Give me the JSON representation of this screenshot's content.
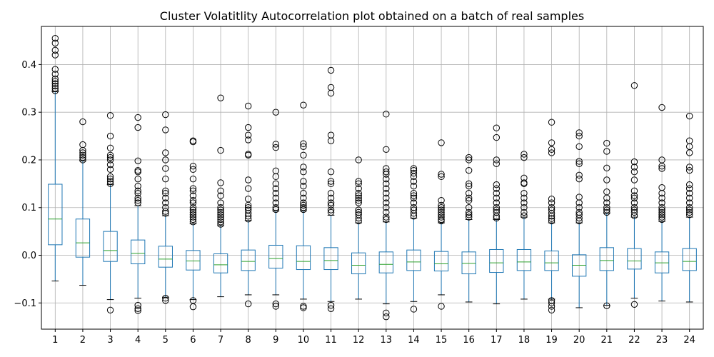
{
  "chart_data": {
    "type": "box",
    "title": "Cluster Volatitlity Autocorrelation plot obtained on a batch of real samples",
    "xlabel": "",
    "ylabel": "",
    "ylim": [
      -0.155,
      0.48
    ],
    "yticks": [
      -0.1,
      0.0,
      0.1,
      0.2,
      0.3,
      0.4
    ],
    "ytick_labels": [
      "−0.1",
      "0.0",
      "0.1",
      "0.2",
      "0.3",
      "0.4"
    ],
    "grid": true,
    "categories": [
      "1",
      "2",
      "3",
      "4",
      "5",
      "6",
      "7",
      "8",
      "9",
      "10",
      "11",
      "12",
      "13",
      "14",
      "15",
      "16",
      "17",
      "18",
      "19",
      "20",
      "21",
      "22",
      "23",
      "24"
    ],
    "boxes": [
      {
        "q1": 0.022,
        "median": 0.076,
        "q3": 0.149,
        "whisker_low": -0.054,
        "whisker_high": 0.343,
        "outliers": [
          0.345,
          0.35,
          0.355,
          0.36,
          0.365,
          0.37,
          0.38,
          0.39,
          0.42,
          0.43,
          0.445,
          0.455
        ]
      },
      {
        "q1": -0.004,
        "median": 0.026,
        "q3": 0.076,
        "whisker_low": -0.063,
        "whisker_high": 0.198,
        "outliers": [
          0.2,
          0.205,
          0.21,
          0.215,
          0.22,
          0.232,
          0.28
        ]
      },
      {
        "q1": -0.013,
        "median": 0.01,
        "q3": 0.05,
        "whisker_low": -0.093,
        "whisker_high": 0.148,
        "outliers": [
          -0.115,
          0.15,
          0.155,
          0.16,
          0.165,
          0.18,
          0.19,
          0.2,
          0.205,
          0.21,
          0.225,
          0.25,
          0.293
        ]
      },
      {
        "q1": -0.018,
        "median": 0.004,
        "q3": 0.032,
        "whisker_low": -0.09,
        "whisker_high": 0.104,
        "outliers": [
          -0.105,
          -0.112,
          -0.116,
          0.11,
          0.115,
          0.12,
          0.13,
          0.135,
          0.145,
          0.16,
          0.175,
          0.178,
          0.198,
          0.268,
          0.289
        ]
      },
      {
        "q1": -0.025,
        "median": -0.008,
        "q3": 0.019,
        "whisker_low": -0.088,
        "whisker_high": 0.083,
        "outliers": [
          -0.09,
          -0.095,
          0.088,
          0.092,
          0.1,
          0.11,
          0.12,
          0.13,
          0.135,
          0.16,
          0.182,
          0.2,
          0.215,
          0.263,
          0.295
        ]
      },
      {
        "q1": -0.031,
        "median": -0.012,
        "q3": 0.01,
        "whisker_low": -0.093,
        "whisker_high": 0.066,
        "outliers": [
          -0.095,
          -0.108,
          0.07,
          0.075,
          0.08,
          0.085,
          0.09,
          0.095,
          0.1,
          0.11,
          0.115,
          0.125,
          0.135,
          0.14,
          0.16,
          0.18,
          0.187,
          0.238,
          0.24
        ]
      },
      {
        "q1": -0.037,
        "median": -0.02,
        "q3": 0.003,
        "whisker_low": -0.087,
        "whisker_high": 0.062,
        "outliers": [
          0.065,
          0.07,
          0.075,
          0.08,
          0.085,
          0.09,
          0.095,
          0.1,
          0.11,
          0.125,
          0.135,
          0.152,
          0.22,
          0.33
        ]
      },
      {
        "q1": -0.032,
        "median": -0.013,
        "q3": 0.011,
        "whisker_low": -0.083,
        "whisker_high": 0.073,
        "outliers": [
          -0.102,
          0.076,
          0.082,
          0.088,
          0.095,
          0.1,
          0.105,
          0.118,
          0.14,
          0.158,
          0.21,
          0.212,
          0.242,
          0.252,
          0.268,
          0.313
        ]
      },
      {
        "q1": -0.027,
        "median": -0.007,
        "q3": 0.021,
        "whisker_low": -0.083,
        "whisker_high": 0.093,
        "outliers": [
          -0.102,
          -0.107,
          0.096,
          0.1,
          0.11,
          0.12,
          0.13,
          0.14,
          0.15,
          0.165,
          0.177,
          0.226,
          0.233,
          0.3
        ]
      },
      {
        "q1": -0.03,
        "median": -0.013,
        "q3": 0.02,
        "whisker_low": -0.092,
        "whisker_high": 0.093,
        "outliers": [
          -0.107,
          -0.11,
          0.096,
          0.1,
          0.105,
          0.11,
          0.12,
          0.13,
          0.145,
          0.155,
          0.175,
          0.185,
          0.21,
          0.228,
          0.234,
          0.315
        ]
      },
      {
        "q1": -0.03,
        "median": -0.011,
        "q3": 0.016,
        "whisker_low": -0.097,
        "whisker_high": 0.084,
        "outliers": [
          -0.105,
          -0.112,
          0.09,
          0.095,
          0.105,
          0.11,
          0.12,
          0.13,
          0.15,
          0.155,
          0.175,
          0.24,
          0.252,
          0.34,
          0.352,
          0.388
        ]
      },
      {
        "q1": -0.039,
        "median": -0.021,
        "q3": 0.005,
        "whisker_low": -0.092,
        "whisker_high": 0.068,
        "outliers": [
          0.072,
          0.078,
          0.085,
          0.09,
          0.095,
          0.11,
          0.115,
          0.12,
          0.125,
          0.13,
          0.14,
          0.15,
          0.155,
          0.2
        ]
      },
      {
        "q1": -0.037,
        "median": -0.019,
        "q3": 0.007,
        "whisker_low": -0.102,
        "whisker_high": 0.07,
        "outliers": [
          -0.121,
          -0.129,
          0.075,
          0.08,
          0.09,
          0.1,
          0.11,
          0.12,
          0.13,
          0.14,
          0.15,
          0.16,
          0.17,
          0.175,
          0.182,
          0.222,
          0.296
        ]
      },
      {
        "q1": -0.032,
        "median": -0.014,
        "q3": 0.011,
        "whisker_low": -0.097,
        "whisker_high": 0.078,
        "outliers": [
          -0.113,
          0.082,
          0.088,
          0.095,
          0.1,
          0.11,
          0.12,
          0.125,
          0.13,
          0.145,
          0.155,
          0.165,
          0.172,
          0.178,
          0.182
        ]
      },
      {
        "q1": -0.033,
        "median": -0.018,
        "q3": 0.008,
        "whisker_low": -0.083,
        "whisker_high": 0.068,
        "outliers": [
          -0.107,
          0.072,
          0.075,
          0.08,
          0.085,
          0.09,
          0.095,
          0.1,
          0.105,
          0.115,
          0.165,
          0.17,
          0.236
        ]
      },
      {
        "q1": -0.039,
        "median": -0.017,
        "q3": 0.007,
        "whisker_low": -0.098,
        "whisker_high": 0.075,
        "outliers": [
          0.08,
          0.085,
          0.09,
          0.1,
          0.115,
          0.12,
          0.13,
          0.145,
          0.15,
          0.178,
          0.2,
          0.205
        ]
      },
      {
        "q1": -0.036,
        "median": -0.016,
        "q3": 0.012,
        "whisker_low": -0.102,
        "whisker_high": 0.075,
        "outliers": [
          0.078,
          0.082,
          0.09,
          0.095,
          0.1,
          0.11,
          0.12,
          0.13,
          0.14,
          0.148,
          0.192,
          0.2,
          0.247,
          0.267
        ]
      },
      {
        "q1": -0.032,
        "median": -0.014,
        "q3": 0.012,
        "whisker_low": -0.092,
        "whisker_high": 0.08,
        "outliers": [
          0.083,
          0.09,
          0.1,
          0.11,
          0.12,
          0.13,
          0.15,
          0.152,
          0.162,
          0.205,
          0.212
        ]
      },
      {
        "q1": -0.032,
        "median": -0.016,
        "q3": 0.009,
        "whisker_low": -0.092,
        "whisker_high": 0.068,
        "outliers": [
          -0.095,
          -0.1,
          -0.107,
          -0.115,
          0.072,
          0.077,
          0.082,
          0.088,
          0.095,
          0.1,
          0.11,
          0.118,
          0.215,
          0.222,
          0.236,
          0.279
        ]
      },
      {
        "q1": -0.044,
        "median": -0.021,
        "q3": 0.001,
        "whisker_low": -0.11,
        "whisker_high": 0.068,
        "outliers": [
          0.072,
          0.078,
          0.085,
          0.09,
          0.1,
          0.11,
          0.122,
          0.16,
          0.168,
          0.192,
          0.197,
          0.228,
          0.25,
          0.257
        ]
      },
      {
        "q1": -0.032,
        "median": -0.011,
        "q3": 0.016,
        "whisker_low": -0.105,
        "whisker_high": 0.088,
        "outliers": [
          -0.106,
          0.09,
          0.095,
          0.1,
          0.11,
          0.12,
          0.133,
          0.158,
          0.183,
          0.218,
          0.235
        ]
      },
      {
        "q1": -0.029,
        "median": -0.012,
        "q3": 0.014,
        "whisker_low": -0.09,
        "whisker_high": 0.08,
        "outliers": [
          -0.103,
          0.083,
          0.09,
          0.095,
          0.1,
          0.11,
          0.12,
          0.125,
          0.135,
          0.158,
          0.175,
          0.185,
          0.196,
          0.356
        ]
      },
      {
        "q1": -0.037,
        "median": -0.016,
        "q3": 0.007,
        "whisker_low": -0.096,
        "whisker_high": 0.071,
        "outliers": [
          0.075,
          0.08,
          0.085,
          0.09,
          0.095,
          0.1,
          0.11,
          0.12,
          0.13,
          0.142,
          0.182,
          0.187,
          0.2,
          0.31
        ]
      },
      {
        "q1": -0.032,
        "median": -0.013,
        "q3": 0.014,
        "whisker_low": -0.098,
        "whisker_high": 0.08,
        "outliers": [
          0.085,
          0.09,
          0.095,
          0.1,
          0.11,
          0.12,
          0.13,
          0.14,
          0.148,
          0.178,
          0.185,
          0.215,
          0.228,
          0.24,
          0.292
        ]
      }
    ]
  }
}
